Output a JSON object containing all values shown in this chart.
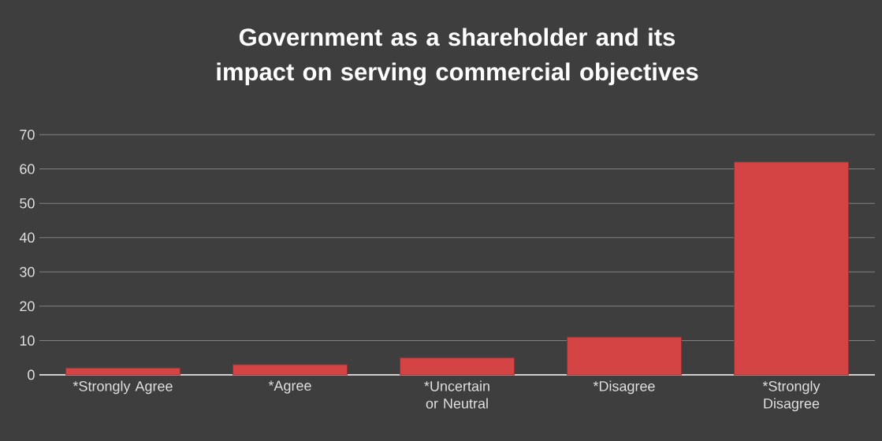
{
  "chart_data": {
    "type": "bar",
    "title": "Government as a shareholder and its impact on serving commercial objectives",
    "categories": [
      "*Strongly Agree",
      "*Agree",
      "*Uncertain or Neutral",
      "*Disagree",
      "*Strongly Disagree"
    ],
    "values": [
      2,
      3,
      5,
      11,
      62
    ],
    "color": "#d44444",
    "ylim": [
      0,
      70
    ],
    "yticks": [
      0,
      10,
      20,
      30,
      40,
      50,
      60,
      70
    ],
    "grid": "y"
  }
}
